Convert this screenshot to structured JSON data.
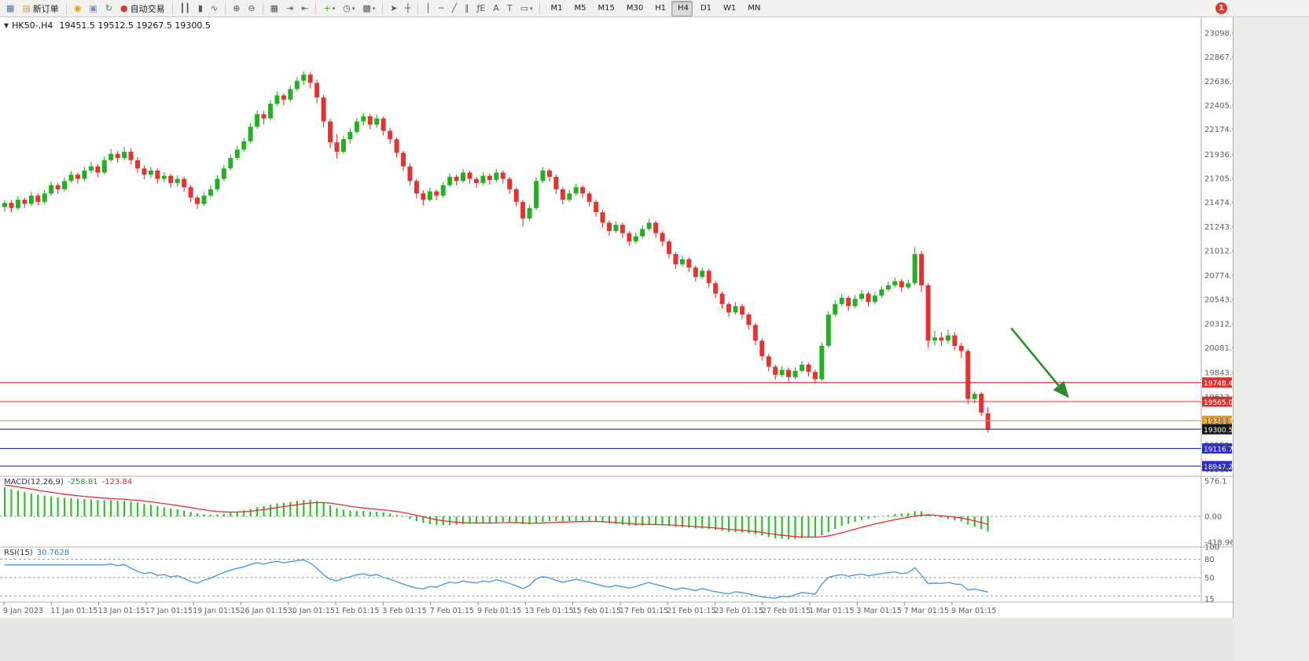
{
  "window": {
    "badge": "1"
  },
  "header": {
    "collapse_glyph": "▼",
    "symbol_period": "HK50-,H4",
    "ohlc": "19451.5 19512.5 19267.5 19300.5"
  },
  "toolbar": {
    "groups": [
      [
        {
          "name": "app-icon-button",
          "icon": "app-icon",
          "glyph": "▦",
          "glyph_color": "#4a6fa5"
        },
        {
          "name": "new-order-button",
          "icon": "new-order-icon",
          "glyph": "▤",
          "glyph_color": "#c9a227",
          "label": "新订单"
        }
      ],
      [
        {
          "name": "accounts-button",
          "icon": "coins-icon",
          "glyph": "◉",
          "glyph_color": "#d4a017"
        },
        {
          "name": "profile-button",
          "icon": "profile-icon",
          "glyph": "▣",
          "glyph_color": "#7a8fb3"
        },
        {
          "name": "refresh-button",
          "icon": "refresh-icon",
          "glyph": "↻",
          "glyph_color": "#3a8f3a"
        },
        {
          "name": "auto-trading-button",
          "icon": "auto-trading-icon",
          "glyph": "●",
          "glyph_color": "#d23b2e",
          "label": "自动交易"
        }
      ],
      [
        {
          "name": "bars-chart-button",
          "icon": "bars-chart-icon",
          "glyph": "┃┃"
        },
        {
          "name": "candlestick-chart-button",
          "icon": "candlestick-chart-icon",
          "glyph": "▮"
        },
        {
          "name": "line-chart-button",
          "icon": "line-chart-icon",
          "glyph": "∿"
        }
      ],
      [
        {
          "name": "zoom-in-button",
          "icon": "zoom-in-icon",
          "glyph": "⊕"
        },
        {
          "name": "zoom-out-button",
          "icon": "zoom-out-icon",
          "glyph": "⊖"
        }
      ],
      [
        {
          "name": "tile-windows-button",
          "icon": "tile-windows-icon",
          "glyph": "▦"
        },
        {
          "name": "auto-scroll-button",
          "icon": "auto-scroll-icon",
          "glyph": "⇥"
        },
        {
          "name": "chart-shift-button",
          "icon": "chart-shift-icon",
          "glyph": "⇤"
        }
      ],
      [
        {
          "name": "indicators-button",
          "icon": "indicators-add-icon",
          "glyph": "+",
          "glyph_color": "#2f9e2f",
          "caret": true
        },
        {
          "name": "periods-button",
          "icon": "clock-icon",
          "glyph": "◷",
          "caret": true
        },
        {
          "name": "templates-button",
          "icon": "template-icon",
          "glyph": "▩",
          "caret": true
        }
      ],
      [
        {
          "name": "cursor-button",
          "icon": "cursor-icon",
          "glyph": "➤"
        },
        {
          "name": "crosshair-button",
          "icon": "crosshair-icon",
          "glyph": "┼"
        }
      ],
      [
        {
          "name": "vertical-line-button",
          "icon": "vertical-line-icon",
          "glyph": "│"
        },
        {
          "name": "horizontal-line-button",
          "icon": "horizontal-line-icon",
          "glyph": "─"
        },
        {
          "name": "trendline-button",
          "icon": "trendline-icon",
          "glyph": "╱"
        },
        {
          "name": "channel-button",
          "icon": "channel-icon",
          "glyph": "∥"
        },
        {
          "name": "fibonacci-button",
          "icon": "fibonacci-icon",
          "glyph": "ƒE"
        },
        {
          "name": "text-button",
          "icon": "text-icon",
          "glyph": "A"
        },
        {
          "name": "label-button",
          "icon": "label-icon",
          "glyph": "T"
        },
        {
          "name": "shapes-button",
          "icon": "shapes-icon",
          "glyph": "▭",
          "caret": true
        }
      ],
      [
        {
          "name": "timeframe-m1",
          "label": "M1"
        },
        {
          "name": "timeframe-m5",
          "label": "M5"
        },
        {
          "name": "timeframe-m15",
          "label": "M15"
        },
        {
          "name": "timeframe-m30",
          "label": "M30"
        },
        {
          "name": "timeframe-h1",
          "label": "H1"
        },
        {
          "name": "timeframe-h4",
          "label": "H4",
          "active": true
        },
        {
          "name": "timeframe-d1",
          "label": "D1"
        },
        {
          "name": "timeframe-w1",
          "label": "W1"
        },
        {
          "name": "timeframe-mn",
          "label": "MN"
        }
      ]
    ]
  },
  "chart_data": {
    "type": "candlestick",
    "symbol": "HK50-",
    "timeframe": "H4",
    "last_ohlc": {
      "open": 19451.5,
      "high": 19512.5,
      "low": 19267.5,
      "close": 19300.5
    },
    "price_axis_labels": [
      "23098.0",
      "22867.0",
      "22636.0",
      "22405.0",
      "22174.0",
      "21936.0",
      "21705.0",
      "21474.0",
      "21243.0",
      "21012.0",
      "20774.0",
      "20543.0",
      "20312.0",
      "20081.0",
      "19843.0",
      "19612.0",
      "19381.0",
      "19150.0",
      "18919.0"
    ],
    "x_labels": [
      "9 Jan 2023",
      "11 Jan 01:15",
      "13 Jan 01:15",
      "17 Jan 01:15",
      "19 Jan 01:15",
      "26 Jan 01:15",
      "30 Jan 01:15",
      "1 Feb 01:15",
      "3 Feb 01:15",
      "7 Feb 01:15",
      "9 Feb 01:15",
      "13 Feb 01:15",
      "15 Feb 01:15",
      "17 Feb 01:15",
      "21 Feb 01:15",
      "23 Feb 01:15",
      "27 Feb 01:15",
      "1 Mar 01:15",
      "3 Mar 01:15",
      "7 Mar 01:15",
      "9 Mar 01:15"
    ],
    "price_lines": [
      {
        "name": "hline-red-19748",
        "value": "19748.4",
        "price": 19748.4,
        "color": "#e03131"
      },
      {
        "name": "hline-red-19565",
        "value": "19565.0",
        "price": 19565.0,
        "color": "#e03131"
      },
      {
        "name": "hline-orange-19381",
        "value": "19381.7",
        "price": 19381.7,
        "color": "#e8991c"
      },
      {
        "name": "current-price-line",
        "value": "19300.5",
        "price": 19300.5,
        "color": "#141414"
      },
      {
        "name": "hline-blue-19116",
        "value": "19116.7",
        "price": 19116.7,
        "color": "#2a2ac8"
      },
      {
        "name": "hline-blue-18947",
        "value": "18947.2",
        "price": 18947.2,
        "color": "#2a2ac8"
      }
    ],
    "indicators": {
      "macd": {
        "label": "MACD(12,26,9)",
        "value_main": "-258.81",
        "value_signal": "-123.84",
        "axis_labels": [
          "576.1",
          "0.00",
          "-418.96"
        ]
      },
      "rsi": {
        "label": "RSI(15)",
        "value": "30.7628",
        "axis_labels": [
          "100",
          "80",
          "50",
          "15"
        ],
        "levels": [
          80,
          50,
          20
        ]
      }
    },
    "annotation_arrow": {
      "from_bar": 151.5,
      "from_price": 20270,
      "to_bar": 160,
      "to_price": 19615,
      "color": "#2e8b2e"
    },
    "colors": {
      "up": "#23b123",
      "down": "#e33434",
      "macd_histogram": "#2fbf2f",
      "macd_signal": "#e03131",
      "rsi_line": "#4f9bd5"
    },
    "candles": [
      [
        21430,
        21500,
        21385,
        21470
      ],
      [
        21470,
        21495,
        21380,
        21420
      ],
      [
        21420,
        21535,
        21400,
        21500
      ],
      [
        21500,
        21520,
        21420,
        21460
      ],
      [
        21460,
        21575,
        21440,
        21540
      ],
      [
        21540,
        21560,
        21445,
        21480
      ],
      [
        21480,
        21595,
        21460,
        21560
      ],
      [
        21560,
        21675,
        21540,
        21640
      ],
      [
        21640,
        21660,
        21555,
        21600
      ],
      [
        21600,
        21715,
        21580,
        21680
      ],
      [
        21680,
        21775,
        21660,
        21740
      ],
      [
        21740,
        21760,
        21655,
        21700
      ],
      [
        21700,
        21815,
        21680,
        21780
      ],
      [
        21780,
        21865,
        21755,
        21820
      ],
      [
        21820,
        21840,
        21715,
        21760
      ],
      [
        21760,
        21915,
        21740,
        21880
      ],
      [
        21880,
        21985,
        21860,
        21940
      ],
      [
        21940,
        21970,
        21855,
        21900
      ],
      [
        21900,
        22005,
        21880,
        21960
      ],
      [
        21960,
        21995,
        21840,
        21880
      ],
      [
        21880,
        21910,
        21755,
        21800
      ],
      [
        21800,
        21830,
        21695,
        21740
      ],
      [
        21740,
        21815,
        21710,
        21780
      ],
      [
        21780,
        21800,
        21655,
        21700
      ],
      [
        21700,
        21765,
        21670,
        21730
      ],
      [
        21730,
        21750,
        21615,
        21660
      ],
      [
        21660,
        21735,
        21630,
        21700
      ],
      [
        21700,
        21720,
        21575,
        21620
      ],
      [
        21620,
        21640,
        21475,
        21520
      ],
      [
        21520,
        21540,
        21415,
        21460
      ],
      [
        21460,
        21575,
        21440,
        21540
      ],
      [
        21540,
        21635,
        21520,
        21600
      ],
      [
        21600,
        21735,
        21580,
        21700
      ],
      [
        21700,
        21835,
        21680,
        21800
      ],
      [
        21800,
        21935,
        21780,
        21900
      ],
      [
        21900,
        22015,
        21880,
        21980
      ],
      [
        21980,
        22095,
        21960,
        22060
      ],
      [
        22060,
        22235,
        22040,
        22200
      ],
      [
        22200,
        22355,
        22180,
        22320
      ],
      [
        22320,
        22350,
        22225,
        22280
      ],
      [
        22280,
        22455,
        22260,
        22420
      ],
      [
        22420,
        22535,
        22400,
        22500
      ],
      [
        22500,
        22520,
        22405,
        22460
      ],
      [
        22460,
        22595,
        22440,
        22560
      ],
      [
        22560,
        22675,
        22540,
        22640
      ],
      [
        22640,
        22730,
        22600,
        22700
      ],
      [
        22700,
        22720,
        22565,
        22620
      ],
      [
        22620,
        22650,
        22425,
        22480
      ],
      [
        22480,
        22505,
        22195,
        22250
      ],
      [
        22250,
        22280,
        21995,
        22050
      ],
      [
        22050,
        22130,
        21895,
        21960
      ],
      [
        21960,
        22115,
        21940,
        22080
      ],
      [
        22080,
        22185,
        22040,
        22150
      ],
      [
        22150,
        22285,
        22130,
        22250
      ],
      [
        22250,
        22335,
        22210,
        22300
      ],
      [
        22300,
        22320,
        22175,
        22220
      ],
      [
        22220,
        22315,
        22190,
        22280
      ],
      [
        22280,
        22300,
        22115,
        22160
      ],
      [
        22160,
        22190,
        22035,
        22080
      ],
      [
        22080,
        22100,
        21905,
        21950
      ],
      [
        21950,
        21970,
        21775,
        21820
      ],
      [
        21820,
        21850,
        21635,
        21680
      ],
      [
        21680,
        21700,
        21515,
        21560
      ],
      [
        21560,
        21590,
        21445,
        21500
      ],
      [
        21500,
        21615,
        21480,
        21580
      ],
      [
        21580,
        21600,
        21495,
        21540
      ],
      [
        21540,
        21675,
        21520,
        21640
      ],
      [
        21640,
        21755,
        21620,
        21720
      ],
      [
        21720,
        21740,
        21635,
        21680
      ],
      [
        21680,
        21795,
        21660,
        21760
      ],
      [
        21760,
        21780,
        21655,
        21700
      ],
      [
        21700,
        21720,
        21615,
        21660
      ],
      [
        21660,
        21765,
        21640,
        21730
      ],
      [
        21730,
        21750,
        21645,
        21690
      ],
      [
        21690,
        21795,
        21670,
        21760
      ],
      [
        21760,
        21780,
        21655,
        21700
      ],
      [
        21700,
        21720,
        21555,
        21600
      ],
      [
        21600,
        21620,
        21435,
        21480
      ],
      [
        21480,
        21500,
        21245,
        21320
      ],
      [
        21320,
        21455,
        21300,
        21420
      ],
      [
        21420,
        21715,
        21400,
        21680
      ],
      [
        21680,
        21815,
        21660,
        21780
      ],
      [
        21780,
        21800,
        21675,
        21720
      ],
      [
        21720,
        21740,
        21555,
        21600
      ],
      [
        21600,
        21620,
        21455,
        21500
      ],
      [
        21500,
        21595,
        21480,
        21560
      ],
      [
        21560,
        21655,
        21540,
        21620
      ],
      [
        21620,
        21640,
        21515,
        21560
      ],
      [
        21560,
        21580,
        21435,
        21480
      ],
      [
        21480,
        21500,
        21335,
        21380
      ],
      [
        21380,
        21400,
        21235,
        21280
      ],
      [
        21280,
        21300,
        21155,
        21200
      ],
      [
        21200,
        21295,
        21180,
        21260
      ],
      [
        21260,
        21280,
        21135,
        21180
      ],
      [
        21180,
        21200,
        21055,
        21100
      ],
      [
        21100,
        21185,
        21080,
        21150
      ],
      [
        21150,
        21255,
        21130,
        21220
      ],
      [
        21220,
        21315,
        21200,
        21280
      ],
      [
        21280,
        21300,
        21135,
        21180
      ],
      [
        21180,
        21200,
        21055,
        21100
      ],
      [
        21100,
        21120,
        20935,
        20980
      ],
      [
        20980,
        21000,
        20835,
        20880
      ],
      [
        20880,
        20965,
        20860,
        20930
      ],
      [
        20930,
        20950,
        20805,
        20850
      ],
      [
        20850,
        20870,
        20715,
        20760
      ],
      [
        20760,
        20855,
        20740,
        20820
      ],
      [
        20820,
        20840,
        20655,
        20700
      ],
      [
        20700,
        20720,
        20555,
        20600
      ],
      [
        20600,
        20620,
        20455,
        20500
      ],
      [
        20500,
        20520,
        20375,
        20420
      ],
      [
        20420,
        20515,
        20400,
        20480
      ],
      [
        20480,
        20500,
        20355,
        20400
      ],
      [
        20400,
        20420,
        20255,
        20300
      ],
      [
        20300,
        20320,
        20105,
        20150
      ],
      [
        20150,
        20170,
        19955,
        20000
      ],
      [
        20000,
        20020,
        19855,
        19900
      ],
      [
        19900,
        19920,
        19775,
        19820
      ],
      [
        19820,
        19905,
        19800,
        19870
      ],
      [
        19870,
        19890,
        19755,
        19800
      ],
      [
        19800,
        19895,
        19780,
        19860
      ],
      [
        19860,
        19955,
        19840,
        19920
      ],
      [
        19920,
        19940,
        19805,
        19850
      ],
      [
        19850,
        19870,
        19735,
        19780
      ],
      [
        19780,
        20135,
        19760,
        20100
      ],
      [
        20100,
        20435,
        20080,
        20400
      ],
      [
        20400,
        20535,
        20380,
        20500
      ],
      [
        20500,
        20595,
        20480,
        20560
      ],
      [
        20560,
        20580,
        20435,
        20480
      ],
      [
        20480,
        20585,
        20460,
        20550
      ],
      [
        20550,
        20635,
        20530,
        20600
      ],
      [
        20600,
        20620,
        20475,
        20520
      ],
      [
        20520,
        20615,
        20500,
        20580
      ],
      [
        20580,
        20675,
        20560,
        20640
      ],
      [
        20640,
        20715,
        20620,
        20680
      ],
      [
        20680,
        20755,
        20660,
        20720
      ],
      [
        20720,
        20740,
        20615,
        20660
      ],
      [
        20660,
        20735,
        20640,
        20700
      ],
      [
        20700,
        21050,
        20680,
        20980
      ],
      [
        20980,
        21010,
        20615,
        20680
      ],
      [
        20680,
        20700,
        20080,
        20150
      ],
      [
        20150,
        20245,
        20100,
        20180
      ],
      [
        20180,
        20230,
        20095,
        20150
      ],
      [
        20150,
        20255,
        20120,
        20200
      ],
      [
        20200,
        20230,
        20055,
        20100
      ],
      [
        20100,
        20130,
        19985,
        20050
      ],
      [
        20050,
        20070,
        19540,
        19590
      ],
      [
        19590,
        19665,
        19550,
        19640
      ],
      [
        19640,
        19660,
        19430,
        19460
      ],
      [
        19451.5,
        19512.5,
        19267.5,
        19300.5
      ]
    ]
  }
}
